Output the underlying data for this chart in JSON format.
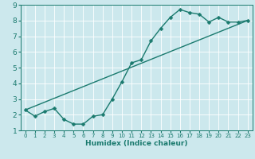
{
  "title": "",
  "xlabel": "Humidex (Indice chaleur)",
  "ylabel": "",
  "bg_color": "#cce8ed",
  "line_color": "#1a7a6e",
  "grid_color": "#ffffff",
  "xlim": [
    -0.5,
    23.5
  ],
  "ylim": [
    1,
    9
  ],
  "xticks": [
    0,
    1,
    2,
    3,
    4,
    5,
    6,
    7,
    8,
    9,
    10,
    11,
    12,
    13,
    14,
    15,
    16,
    17,
    18,
    19,
    20,
    21,
    22,
    23
  ],
  "yticks": [
    1,
    2,
    3,
    4,
    5,
    6,
    7,
    8,
    9
  ],
  "series1_x": [
    0,
    1,
    2,
    3,
    4,
    5,
    6,
    7,
    8,
    9,
    10,
    11,
    12,
    13,
    14,
    15,
    16,
    17,
    18,
    19,
    20,
    21,
    22,
    23
  ],
  "series1_y": [
    2.3,
    1.9,
    2.2,
    2.4,
    1.7,
    1.4,
    1.4,
    1.9,
    2.0,
    3.0,
    4.1,
    5.3,
    5.5,
    6.7,
    7.5,
    8.2,
    8.7,
    8.5,
    8.4,
    7.9,
    8.2,
    7.9,
    7.9,
    8.0
  ],
  "series2_x": [
    0,
    23
  ],
  "series2_y": [
    2.3,
    8.0
  ],
  "marker_size": 2.5,
  "line_width": 1.0,
  "xlabel_fontsize": 6.5,
  "xlabel_fontweight": "bold",
  "tick_fontsize_x": 5.0,
  "tick_fontsize_y": 6.5
}
